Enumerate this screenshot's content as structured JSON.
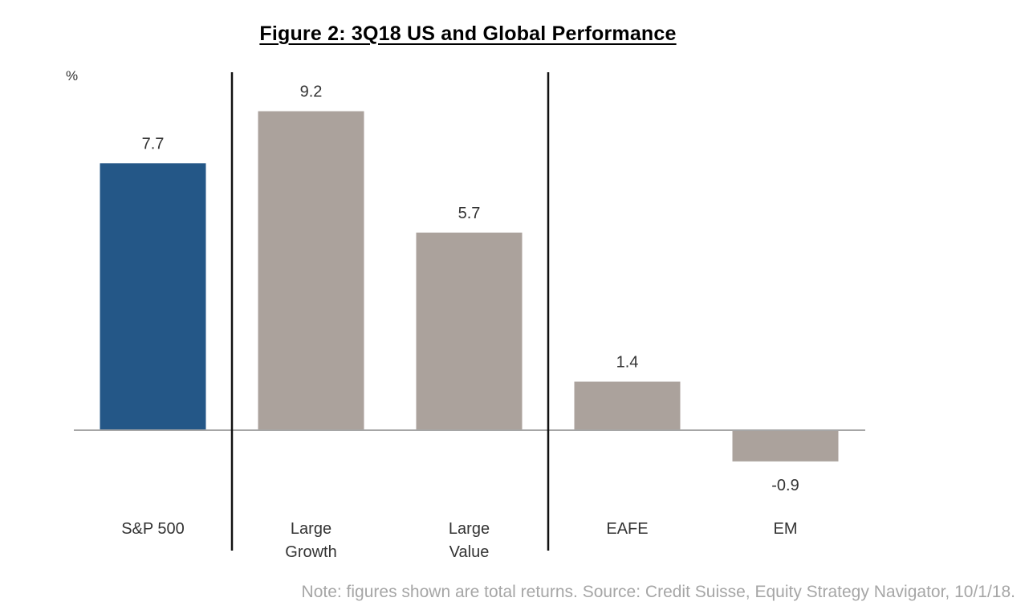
{
  "chart_data": {
    "type": "bar",
    "title": "Figure 2: 3Q18 US and Global Performance",
    "ylabel": "%",
    "xlabel": "",
    "categories": [
      "S&P 500",
      "Large Growth",
      "Large Value",
      "EAFE",
      "EM"
    ],
    "category_lines": [
      [
        "S&P 500"
      ],
      [
        "Large",
        "Growth"
      ],
      [
        "Large",
        "Value"
      ],
      [
        "EAFE"
      ],
      [
        "EM"
      ]
    ],
    "values": [
      7.7,
      9.2,
      5.7,
      1.4,
      -0.9
    ],
    "value_labels": [
      "7.7",
      "9.2",
      "5.7",
      "1.4",
      "-0.9"
    ],
    "bar_colors": [
      "#245787",
      "#aba29c",
      "#aba29c",
      "#aba29c",
      "#aba29c"
    ],
    "group_separators_after": [
      0,
      2
    ],
    "grid": false,
    "legend": "none"
  },
  "note": "Note: figures shown are total returns. Source: Credit Suisse, Equity Strategy Navigator, 10/1/18."
}
